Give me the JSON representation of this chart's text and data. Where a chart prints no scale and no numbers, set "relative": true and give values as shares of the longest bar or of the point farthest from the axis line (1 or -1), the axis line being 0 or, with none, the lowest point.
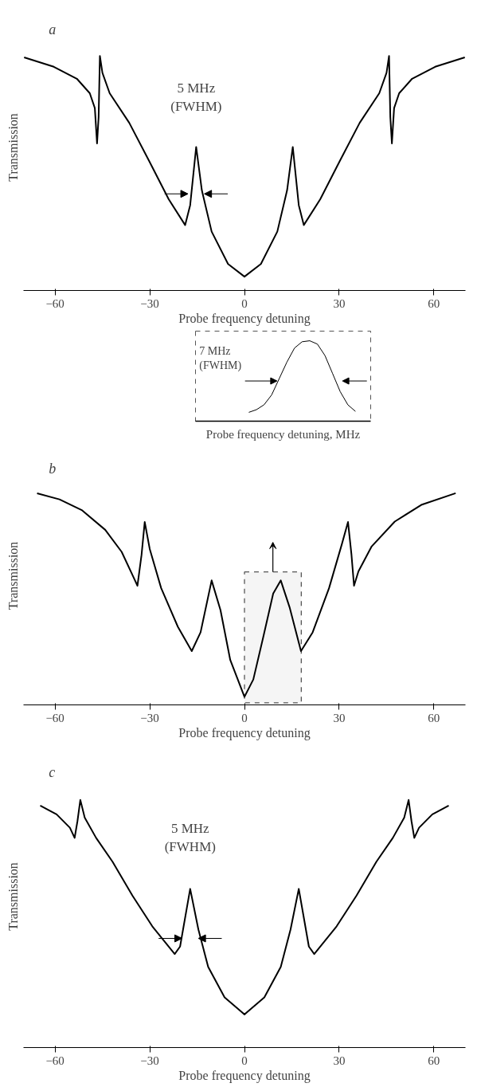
{
  "chart_data": [
    {
      "type": "line",
      "title": "a",
      "relative": true,
      "xlabel": "Probe frequency detuning",
      "ylabel": "Transmission",
      "xlim": [
        -70,
        70
      ],
      "xticks": [
        -60,
        -30,
        0,
        30,
        60
      ],
      "grid": false,
      "annotations": [
        {
          "text": "5 MHz\n(FWHM)",
          "x": -15.3,
          "y": 0.612
        }
      ],
      "series": [
        {
          "color": "#000000",
          "x": [
            -69.8,
            -60.4,
            -53.1,
            -49.0,
            -47.4,
            -46.7,
            -46.2,
            -45.8,
            -45.0,
            -42.7,
            -36.5,
            -30.2,
            -24.0,
            -18.8,
            -17.2,
            -15.3,
            -13.5,
            -10.4,
            -5.2,
            0,
            5.2,
            10.4,
            13.5,
            15.3,
            17.2,
            18.8,
            24.0,
            30.2,
            36.5,
            42.7,
            45.0,
            45.8,
            46.2,
            46.7,
            47.4,
            49.0,
            53.1,
            60.4,
            69.8
          ],
          "values": [
            0.994,
            0.954,
            0.903,
            0.841,
            0.778,
            0.627,
            0.74,
            1.0,
            0.928,
            0.841,
            0.715,
            0.552,
            0.389,
            0.279,
            0.364,
            0.612,
            0.427,
            0.251,
            0.113,
            0.059,
            0.113,
            0.251,
            0.427,
            0.612,
            0.364,
            0.279,
            0.389,
            0.552,
            0.715,
            0.841,
            0.928,
            1.0,
            0.74,
            0.627,
            0.778,
            0.841,
            0.903,
            0.954,
            0.994
          ]
        }
      ]
    },
    {
      "type": "line",
      "relative": true,
      "xlabel": "Probe frequency detuning, MHz",
      "categories": [
        null,
        null,
        null,
        null,
        null,
        null,
        null,
        null,
        null,
        null,
        null,
        null,
        null,
        null,
        null
      ],
      "tick_labels": false,
      "grid": false,
      "annotations": [
        "7 MHz\n(FWHM)"
      ],
      "series": [
        {
          "color": "#000000",
          "values": [
            0.11,
            0.143,
            0.204,
            0.327,
            0.531,
            0.735,
            0.91,
            0.988,
            1.0,
            0.959,
            0.816,
            0.592,
            0.367,
            0.204,
            0.122
          ]
        }
      ]
    },
    {
      "type": "line",
      "title": "b",
      "relative": true,
      "xlabel": "Probe frequency detuning",
      "ylabel": "Transmission",
      "xlim": [
        -70,
        70
      ],
      "xticks": [
        -60,
        -30,
        0,
        30,
        60
      ],
      "grid": false,
      "bands": [
        {
          "axis": "x",
          "from": 0,
          "to": 18,
          "color": "#555555"
        }
      ],
      "series": [
        {
          "color": "#000000",
          "x": [
            -65.7,
            -58.6,
            -51.4,
            -44.1,
            -38.9,
            -35.2,
            -33.9,
            -32.6,
            -31.6,
            -30.0,
            -26.4,
            -21.1,
            -16.7,
            -13.9,
            -10.4,
            -7.6,
            -4.5,
            0,
            2.8,
            5.9,
            9.1,
            11.5,
            14.3,
            17.9,
            21.6,
            26.8,
            30.9,
            32.8,
            33.9,
            34.7,
            36.1,
            40.3,
            47.6,
            56.0,
            66.9
          ],
          "values": [
            1.0,
            0.971,
            0.919,
            0.827,
            0.723,
            0.605,
            0.563,
            0.709,
            0.864,
            0.736,
            0.552,
            0.369,
            0.254,
            0.343,
            0.588,
            0.448,
            0.212,
            0.038,
            0.12,
            0.317,
            0.526,
            0.588,
            0.461,
            0.254,
            0.343,
            0.552,
            0.762,
            0.864,
            0.709,
            0.563,
            0.631,
            0.749,
            0.866,
            0.945,
            1.0
          ]
        }
      ]
    },
    {
      "type": "line",
      "title": "c",
      "relative": true,
      "xlabel": "Probe frequency detuning",
      "ylabel": "Transmission",
      "xlim": [
        -70,
        70
      ],
      "xticks": [
        -60,
        -30,
        0,
        30,
        60
      ],
      "grid": false,
      "annotations": [
        {
          "text": "5 MHz\n(FWHM)",
          "x": -17.2,
          "y": 0.641
        }
      ],
      "series": [
        {
          "color": "#000000",
          "x": [
            -64.7,
            -59.5,
            -55.3,
            -53.8,
            -52.9,
            -52.0,
            -50.6,
            -47.0,
            -41.8,
            -35.5,
            -29.2,
            -22.1,
            -20.4,
            -17.2,
            -14.6,
            -11.5,
            -6.3,
            0,
            6.3,
            11.5,
            14.6,
            17.2,
            20.4,
            22.1,
            29.2,
            35.5,
            41.8,
            47.0,
            50.6,
            52.0,
            52.9,
            53.8,
            55.3,
            59.5,
            64.7
          ],
          "values": [
            0.977,
            0.942,
            0.888,
            0.847,
            0.915,
            1.0,
            0.929,
            0.847,
            0.751,
            0.614,
            0.49,
            0.378,
            0.408,
            0.641,
            0.477,
            0.326,
            0.203,
            0.134,
            0.203,
            0.326,
            0.477,
            0.641,
            0.408,
            0.378,
            0.49,
            0.614,
            0.751,
            0.847,
            0.929,
            1.0,
            0.915,
            0.847,
            0.888,
            0.942,
            0.977
          ]
        }
      ]
    }
  ]
}
